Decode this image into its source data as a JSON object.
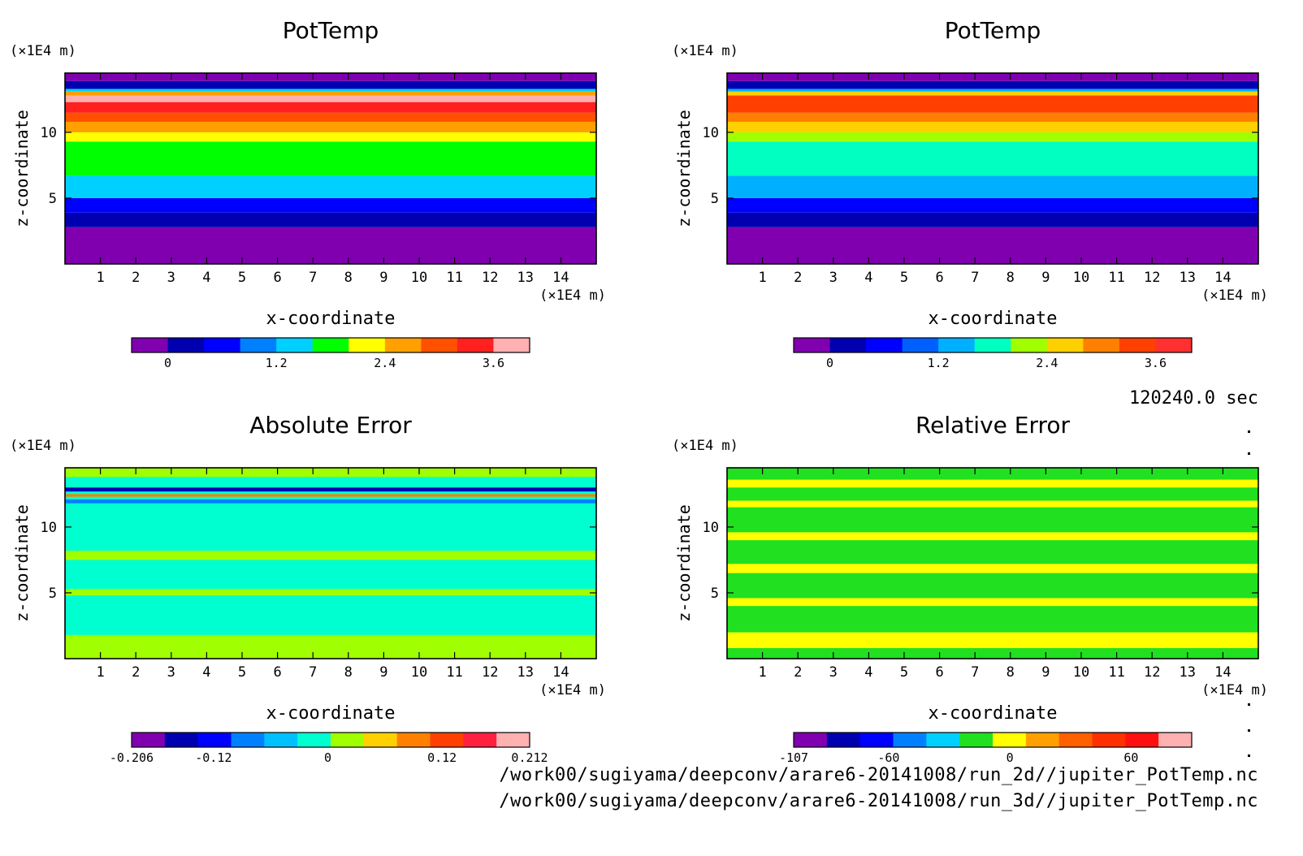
{
  "time_label": "120240.0 sec",
  "file_paths": [
    "/work00/sugiyama/deepconv/arare6-20141008/run_2d//jupiter_PotTemp.nc",
    "/work00/sugiyama/deepconv/arare6-20141008/run_3d//jupiter_PotTemp.nc"
  ],
  "chart_data": [
    {
      "type": "heatmap",
      "title": "PotTemp",
      "xlabel": "x-coordinate",
      "ylabel": "z-coordinate",
      "x_unit": "(×1E4 m)",
      "z_unit": "(×1E4 m)",
      "xlim": [
        0,
        15
      ],
      "zlim": [
        0,
        14.5
      ],
      "x_ticks": [
        1,
        2,
        3,
        4,
        5,
        6,
        7,
        8,
        9,
        10,
        11,
        12,
        13,
        14
      ],
      "z_ticks": [
        5,
        10
      ],
      "colorbar": {
        "colors": [
          "#8000b0",
          "#0000b0",
          "#0000ff",
          "#0080ff",
          "#00d0ff",
          "#00ff00",
          "#ffff00",
          "#ffa000",
          "#ff5000",
          "#ff2020",
          "#ffb0b0"
        ],
        "tick_labels": [
          "0",
          "1.2",
          "2.4",
          "3.6"
        ],
        "tick_values": [
          0,
          1.2,
          2.4,
          3.6
        ],
        "range": [
          -0.4,
          4.0
        ]
      },
      "bands": [
        {
          "z0": 0.0,
          "z1": 2.8,
          "color": "#8000b0"
        },
        {
          "z0": 2.8,
          "z1": 3.9,
          "color": "#0000b0"
        },
        {
          "z0": 3.9,
          "z1": 5.0,
          "color": "#0000ff"
        },
        {
          "z0": 5.0,
          "z1": 6.7,
          "color": "#00d0ff"
        },
        {
          "z0": 6.7,
          "z1": 9.3,
          "color": "#00ff00"
        },
        {
          "z0": 9.3,
          "z1": 10.0,
          "color": "#ffff00"
        },
        {
          "z0": 10.0,
          "z1": 10.8,
          "color": "#ffa000"
        },
        {
          "z0": 10.8,
          "z1": 11.5,
          "color": "#ff5000"
        },
        {
          "z0": 11.5,
          "z1": 12.3,
          "color": "#ff2020"
        },
        {
          "z0": 12.3,
          "z1": 12.8,
          "color": "#ffb0b0"
        },
        {
          "z0": 12.8,
          "z1": 13.1,
          "color": "#ffa000"
        },
        {
          "z0": 13.1,
          "z1": 13.3,
          "color": "#00d0ff"
        },
        {
          "z0": 13.3,
          "z1": 13.9,
          "color": "#0000b0"
        },
        {
          "z0": 13.9,
          "z1": 14.5,
          "color": "#8000b0"
        }
      ]
    },
    {
      "type": "heatmap",
      "title": "PotTemp",
      "xlabel": "x-coordinate",
      "ylabel": "z-coordinate",
      "x_unit": "(×1E4 m)",
      "z_unit": "(×1E4 m)",
      "xlim": [
        0,
        15
      ],
      "zlim": [
        0,
        14.5
      ],
      "x_ticks": [
        1,
        2,
        3,
        4,
        5,
        6,
        7,
        8,
        9,
        10,
        11,
        12,
        13,
        14
      ],
      "z_ticks": [
        5,
        10
      ],
      "colorbar": {
        "colors": [
          "#8000b0",
          "#0000b0",
          "#0000ff",
          "#0060ff",
          "#00b0ff",
          "#00ffc0",
          "#a0ff00",
          "#ffd000",
          "#ff8000",
          "#ff4000",
          "#ff3030"
        ],
        "tick_labels": [
          "0",
          "1.2",
          "2.4",
          "3.6"
        ],
        "tick_values": [
          0,
          1.2,
          2.4,
          3.6
        ],
        "range": [
          -0.4,
          4.0
        ]
      },
      "bands": [
        {
          "z0": 0.0,
          "z1": 2.8,
          "color": "#8000b0"
        },
        {
          "z0": 2.8,
          "z1": 3.9,
          "color": "#0000b0"
        },
        {
          "z0": 3.9,
          "z1": 5.0,
          "color": "#0000ff"
        },
        {
          "z0": 5.0,
          "z1": 6.7,
          "color": "#00b0ff"
        },
        {
          "z0": 6.7,
          "z1": 9.3,
          "color": "#00ffc0"
        },
        {
          "z0": 9.3,
          "z1": 10.0,
          "color": "#a0ff00"
        },
        {
          "z0": 10.0,
          "z1": 10.8,
          "color": "#ffd000"
        },
        {
          "z0": 10.8,
          "z1": 11.5,
          "color": "#ff8000"
        },
        {
          "z0": 11.5,
          "z1": 12.8,
          "color": "#ff4000"
        },
        {
          "z0": 12.8,
          "z1": 13.1,
          "color": "#ffd000"
        },
        {
          "z0": 13.1,
          "z1": 13.3,
          "color": "#00b0ff"
        },
        {
          "z0": 13.3,
          "z1": 13.9,
          "color": "#0000b0"
        },
        {
          "z0": 13.9,
          "z1": 14.5,
          "color": "#8000b0"
        }
      ]
    },
    {
      "type": "heatmap",
      "title": "Absolute Error",
      "xlabel": "x-coordinate",
      "ylabel": "z-coordinate",
      "x_unit": "(×1E4 m)",
      "z_unit": "(×1E4 m)",
      "xlim": [
        0,
        15
      ],
      "zlim": [
        0,
        14.5
      ],
      "x_ticks": [
        1,
        2,
        3,
        4,
        5,
        6,
        7,
        8,
        9,
        10,
        11,
        12,
        13,
        14
      ],
      "z_ticks": [
        5,
        10
      ],
      "colorbar": {
        "colors": [
          "#8000b0",
          "#0000b0",
          "#0000ff",
          "#0080ff",
          "#00c0ff",
          "#00ffd0",
          "#a0ff00",
          "#ffd000",
          "#ff8000",
          "#ff4000",
          "#ff2040",
          "#ffb0b0"
        ],
        "tick_labels": [
          "-0.206",
          "-0.12",
          "0",
          "0.12",
          "0.212"
        ],
        "tick_values": [
          -0.206,
          -0.12,
          0,
          0.12,
          0.212
        ],
        "range": [
          -0.206,
          0.212
        ]
      },
      "background": "#00ffd0",
      "bands": [
        {
          "z0": 0.0,
          "z1": 1.8,
          "color": "#a0ff00"
        },
        {
          "z0": 4.8,
          "z1": 5.3,
          "color": "#a0ff00"
        },
        {
          "z0": 7.5,
          "z1": 8.2,
          "color": "#a0ff00"
        },
        {
          "z0": 13.8,
          "z1": 14.5,
          "color": "#a0ff00"
        },
        {
          "z0": 12.7,
          "z1": 13.0,
          "color": "#0000b0"
        },
        {
          "z0": 12.3,
          "z1": 12.5,
          "color": "#ff8000"
        },
        {
          "z0": 11.8,
          "z1": 12.1,
          "color": "#0080ff"
        }
      ]
    },
    {
      "type": "heatmap",
      "title": "Relative Error",
      "xlabel": "x-coordinate",
      "ylabel": "z-coordinate",
      "x_unit": "(×1E4 m)",
      "z_unit": "(×1E4 m)",
      "xlim": [
        0,
        15
      ],
      "zlim": [
        0,
        14.5
      ],
      "x_ticks": [
        1,
        2,
        3,
        4,
        5,
        6,
        7,
        8,
        9,
        10,
        11,
        12,
        13,
        14
      ],
      "z_ticks": [
        5,
        10
      ],
      "colorbar": {
        "colors": [
          "#8000b0",
          "#0000b0",
          "#0000ff",
          "#0080ff",
          "#00d0ff",
          "#20e020",
          "#ffff00",
          "#ffa000",
          "#ff6000",
          "#ff3000",
          "#ff1010",
          "#ffb0b0"
        ],
        "tick_labels": [
          "-107",
          "-60",
          "0",
          "60"
        ],
        "tick_values": [
          -107,
          -60,
          0,
          60
        ],
        "range": [
          -107,
          90
        ]
      },
      "background": "#20e020",
      "bands": [
        {
          "z0": 0.8,
          "z1": 2.0,
          "color": "#ffff00"
        },
        {
          "z0": 4.0,
          "z1": 4.6,
          "color": "#ffff00"
        },
        {
          "z0": 6.5,
          "z1": 7.2,
          "color": "#ffff00"
        },
        {
          "z0": 9.0,
          "z1": 9.6,
          "color": "#ffff00"
        },
        {
          "z0": 11.5,
          "z1": 12.0,
          "color": "#ffff00"
        },
        {
          "z0": 13.0,
          "z1": 13.6,
          "color": "#ffff00"
        }
      ]
    }
  ]
}
